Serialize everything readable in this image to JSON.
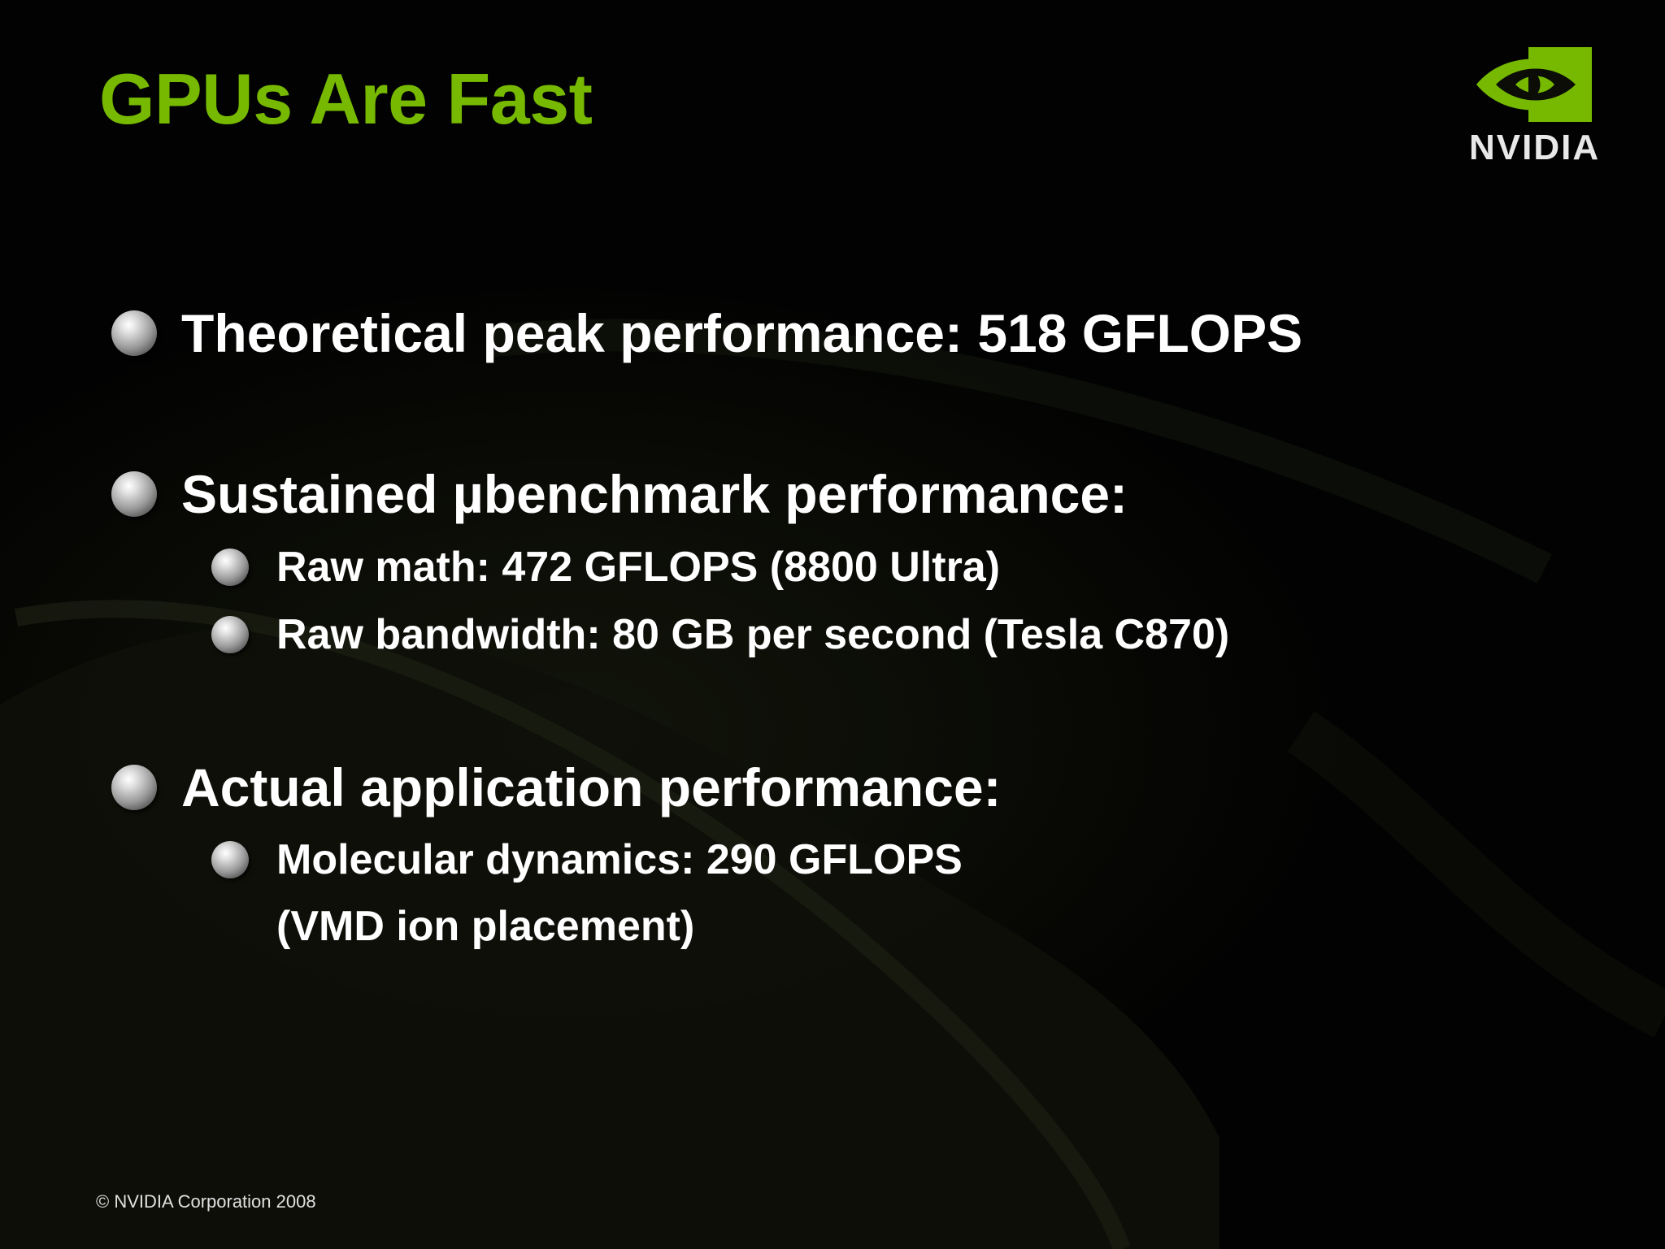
{
  "slide": {
    "title": "GPUs Are Fast",
    "logo_text": "NVIDIA",
    "bullets": [
      {
        "text": "Theoretical peak performance: 518 GFLOPS"
      },
      {
        "text": "Sustained µbenchmark performance:",
        "sub": [
          "Raw math: 472 GFLOPS (8800 Ultra)",
          "Raw bandwidth: 80 GB per second (Tesla C870)"
        ]
      },
      {
        "text": "Actual application performance:",
        "sub": [
          "Molecular dynamics: 290 GFLOPS"
        ],
        "sub_continuation": "(VMD ion placement)"
      }
    ],
    "footer": "© NVIDIA Corporation 2008"
  },
  "colors": {
    "title": "#76b900",
    "background": "#000000",
    "text": "#ffffff",
    "logo_green": "#76b900"
  }
}
